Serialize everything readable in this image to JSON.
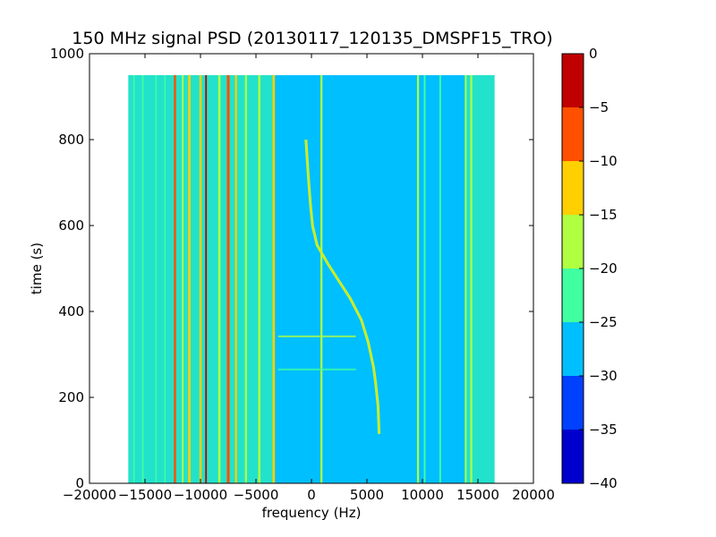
{
  "chart_data": {
    "type": "heatmap",
    "title": "150 MHz signal PSD (20130117_120135_DMSPF15_TRO)",
    "xlabel": "frequency (Hz)",
    "ylabel": "time (s)",
    "xlim": [
      -20000,
      20000
    ],
    "ylim": [
      0,
      1000
    ],
    "x_ticks": [
      -20000,
      -15000,
      -10000,
      -5000,
      0,
      5000,
      10000,
      15000,
      20000
    ],
    "x_tick_labels": [
      "−20000",
      "−15000",
      "−10000",
      "−5000",
      "0",
      "5000",
      "10000",
      "15000",
      "20000"
    ],
    "y_ticks": [
      0,
      200,
      400,
      600,
      800,
      1000
    ],
    "y_tick_labels": [
      "0",
      "200",
      "400",
      "600",
      "800",
      "1000"
    ],
    "data_extent": {
      "x": [
        -16500,
        16500
      ],
      "y": [
        0,
        950
      ]
    },
    "colorbar": {
      "levels": [
        -40,
        -35,
        -30,
        -25,
        -20,
        -15,
        -10,
        -5,
        0
      ],
      "tick_labels": [
        "−40",
        "−35",
        "−30",
        "−25",
        "−20",
        "−15",
        "−10",
        "−5",
        "0"
      ],
      "colors": [
        "#0000cd",
        "#0040ff",
        "#00bfff",
        "#40ffa0",
        "#b0ff40",
        "#ffcf00",
        "#ff5000",
        "#c00000"
      ]
    },
    "background_level_db": -27,
    "noise_bands": [
      {
        "x0": -16500,
        "x1": -13000,
        "level_db": -22
      },
      {
        "x0": -13000,
        "x1": -3500,
        "level_db": -24
      },
      {
        "x0": 9500,
        "x1": 13800,
        "level_db": -27
      },
      {
        "x0": 13800,
        "x1": 16500,
        "level_db": -22
      }
    ],
    "vertical_lines": [
      {
        "x": -16000,
        "width": 120,
        "level_db": -22,
        "t0": 0,
        "t1": 950
      },
      {
        "x": -15200,
        "width": 150,
        "level_db": -24,
        "t0": 0,
        "t1": 950
      },
      {
        "x": -14000,
        "width": 120,
        "level_db": -22,
        "t0": 0,
        "t1": 950
      },
      {
        "x": -13200,
        "width": 120,
        "level_db": -22,
        "t0": 0,
        "t1": 950
      },
      {
        "x": -12300,
        "width": 200,
        "level_db": -8,
        "t0": 0,
        "t1": 950
      },
      {
        "x": -11600,
        "width": 150,
        "level_db": -20,
        "t0": 0,
        "t1": 950
      },
      {
        "x": -11000,
        "width": 220,
        "level_db": -15,
        "t0": 0,
        "t1": 950
      },
      {
        "x": -10000,
        "width": 200,
        "level_db": -14,
        "t0": 0,
        "t1": 950
      },
      {
        "x": -9500,
        "width": 150,
        "level_db": -2,
        "t0": 0,
        "t1": 950
      },
      {
        "x": -8300,
        "width": 200,
        "level_db": -16,
        "t0": 0,
        "t1": 950
      },
      {
        "x": -7500,
        "width": 250,
        "level_db": -6,
        "t0": 0,
        "t1": 950
      },
      {
        "x": -6800,
        "width": 180,
        "level_db": -14,
        "t0": 0,
        "t1": 950
      },
      {
        "x": -5900,
        "width": 180,
        "level_db": -20,
        "t0": 0,
        "t1": 950
      },
      {
        "x": -4700,
        "width": 200,
        "level_db": -20,
        "t0": 0,
        "t1": 950
      },
      {
        "x": -3400,
        "width": 220,
        "level_db": -14,
        "t0": 0,
        "t1": 950
      },
      {
        "x": 900,
        "width": 180,
        "level_db": -18,
        "t0": 0,
        "t1": 950
      },
      {
        "x": 9600,
        "width": 180,
        "level_db": -18,
        "t0": 0,
        "t1": 950
      },
      {
        "x": 10200,
        "width": 150,
        "level_db": -22,
        "t0": 0,
        "t1": 950
      },
      {
        "x": 11600,
        "width": 150,
        "level_db": -22,
        "t0": 0,
        "t1": 950
      },
      {
        "x": 13900,
        "width": 150,
        "level_db": -20,
        "t0": 0,
        "t1": 950
      },
      {
        "x": 14400,
        "width": 180,
        "level_db": -18,
        "t0": 0,
        "t1": 950
      }
    ],
    "horizontal_streaks": [
      {
        "t": 342,
        "x0": -3000,
        "x1": 4000,
        "level_db": -20
      },
      {
        "t": 265,
        "x0": -3000,
        "x1": 4000,
        "level_db": -22
      }
    ],
    "doppler_trace": {
      "level_db": -17,
      "points": [
        [
          -500,
          800
        ],
        [
          -300,
          720
        ],
        [
          -100,
          650
        ],
        [
          100,
          600
        ],
        [
          500,
          555
        ],
        [
          1500,
          510
        ],
        [
          2500,
          470
        ],
        [
          3500,
          430
        ],
        [
          4500,
          380
        ],
        [
          5100,
          330
        ],
        [
          5600,
          270
        ],
        [
          5800,
          230
        ],
        [
          6000,
          180
        ],
        [
          6100,
          115
        ]
      ]
    }
  }
}
